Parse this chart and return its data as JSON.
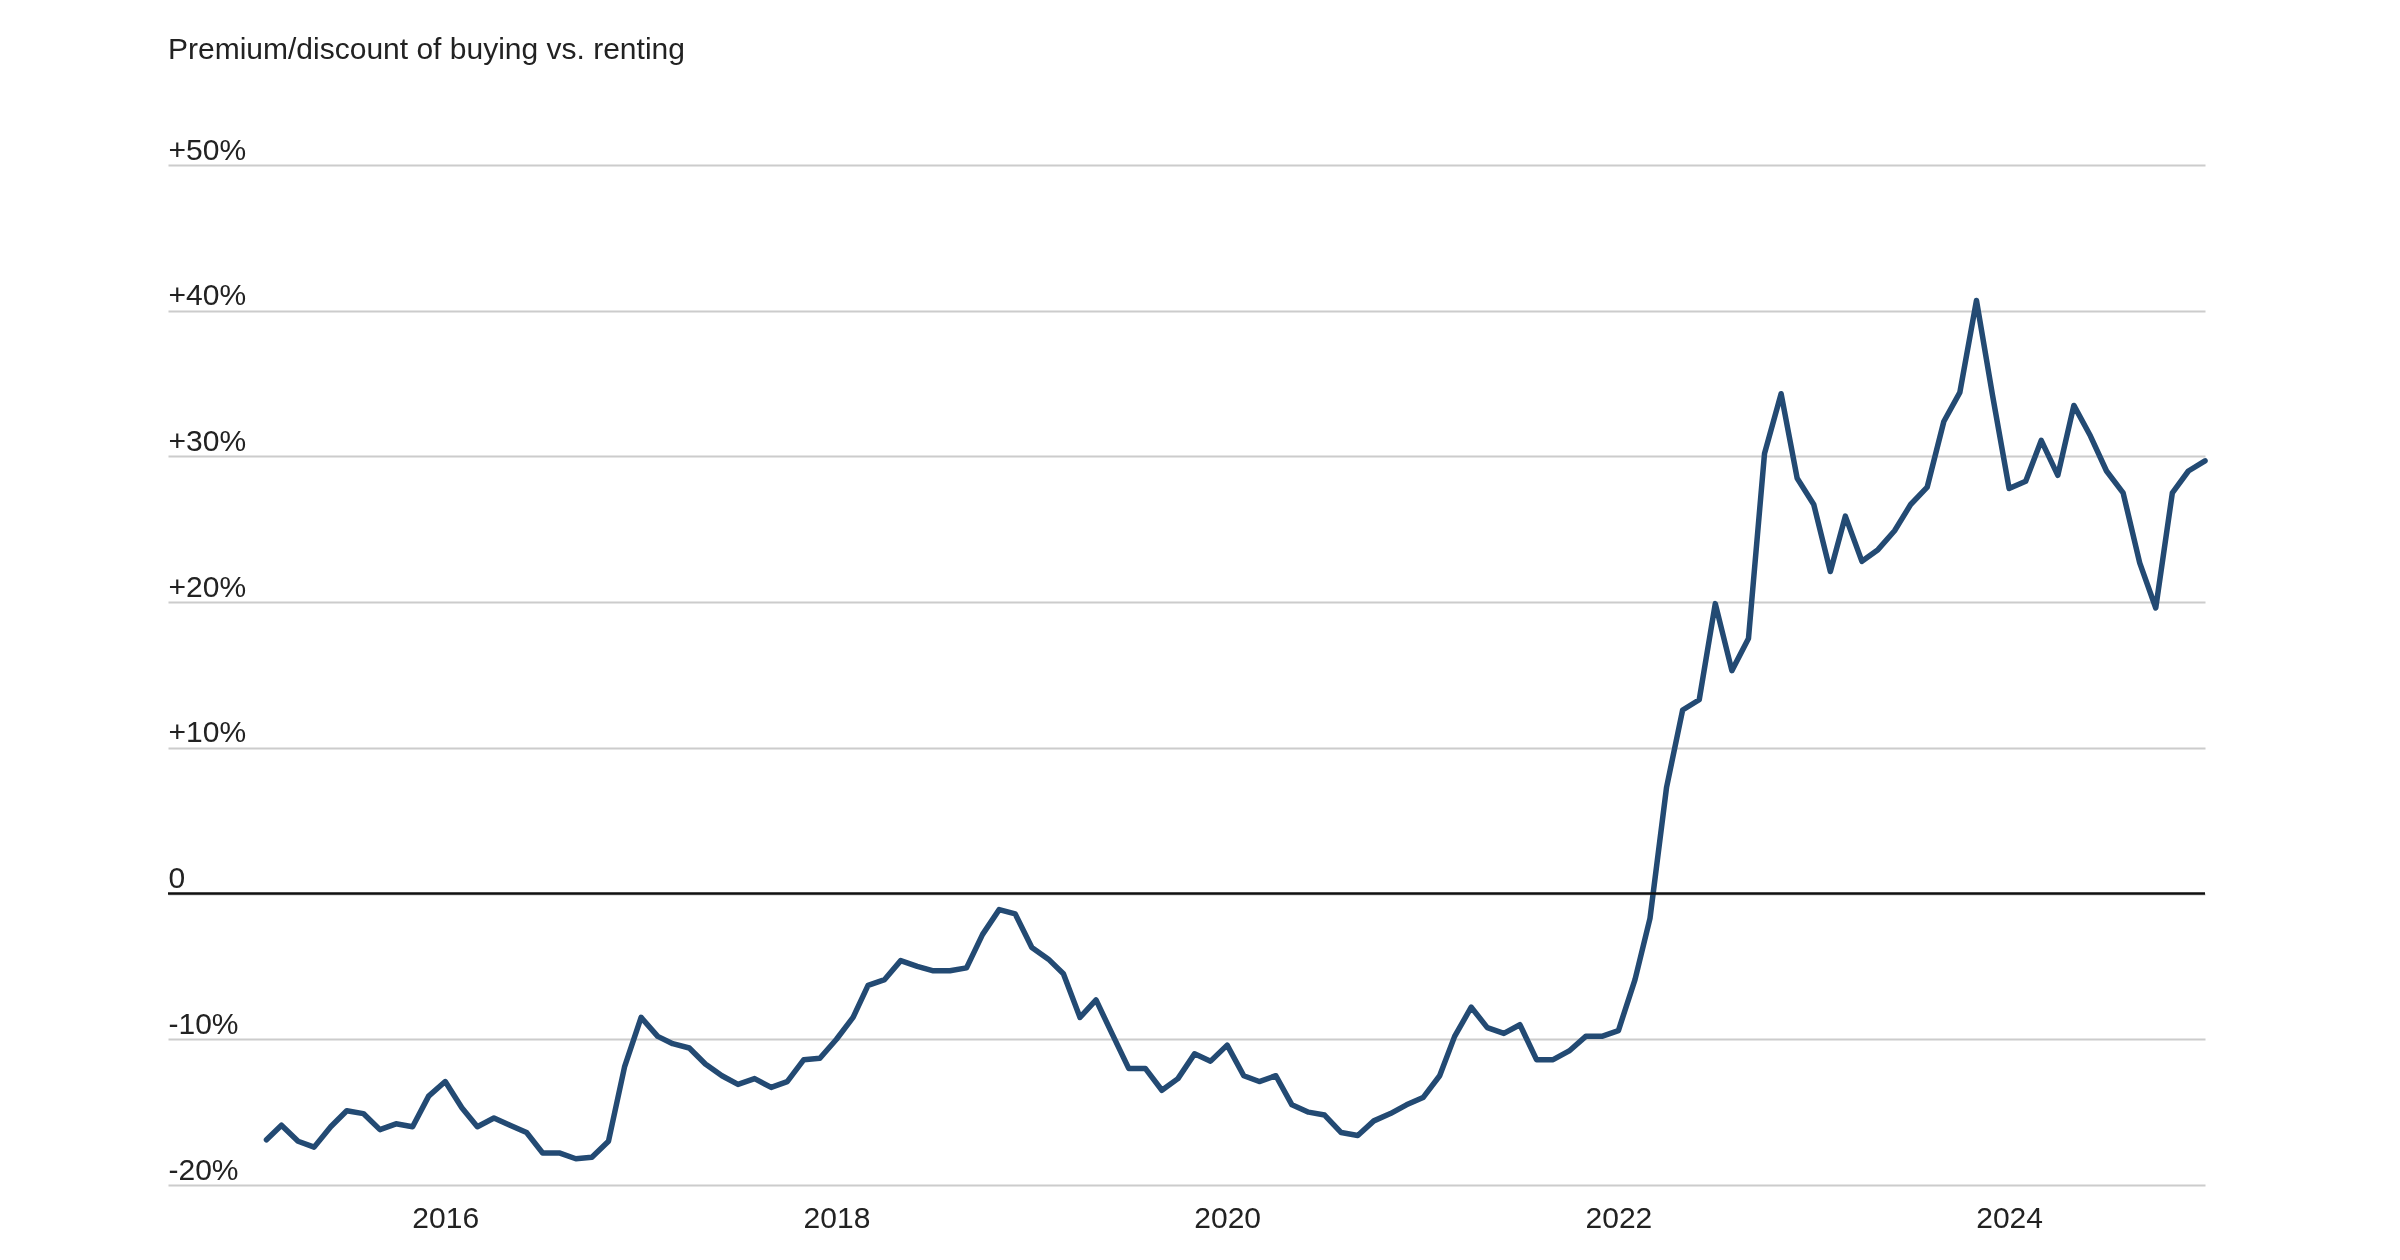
{
  "chart_data": {
    "type": "line",
    "title": "Premium/discount of buying vs. renting",
    "x": [
      "2015-02",
      "2015-03",
      "2015-04",
      "2015-05",
      "2015-06",
      "2015-07",
      "2015-08",
      "2015-09",
      "2015-10",
      "2015-11",
      "2015-12",
      "2016-01",
      "2016-02",
      "2016-03",
      "2016-04",
      "2016-05",
      "2016-06",
      "2016-07",
      "2016-08",
      "2016-09",
      "2016-10",
      "2016-11",
      "2016-12",
      "2017-01",
      "2017-02",
      "2017-03",
      "2017-04",
      "2017-05",
      "2017-06",
      "2017-07",
      "2017-08",
      "2017-09",
      "2017-10",
      "2017-11",
      "2017-12",
      "2018-01",
      "2018-02",
      "2018-03",
      "2018-04",
      "2018-05",
      "2018-06",
      "2018-07",
      "2018-08",
      "2018-09",
      "2018-10",
      "2018-11",
      "2018-12",
      "2019-01",
      "2019-02",
      "2019-03",
      "2019-04",
      "2019-05",
      "2019-06",
      "2019-07",
      "2019-08",
      "2019-09",
      "2019-10",
      "2019-11",
      "2019-12",
      "2020-01",
      "2020-02",
      "2020-03",
      "2020-04",
      "2020-05",
      "2020-06",
      "2020-07",
      "2020-08",
      "2020-09",
      "2020-10",
      "2020-11",
      "2020-12",
      "2021-01",
      "2021-02",
      "2021-03",
      "2021-04",
      "2021-05",
      "2021-06",
      "2021-07",
      "2021-08",
      "2021-09",
      "2021-10",
      "2021-11",
      "2021-12",
      "2022-01",
      "2022-02",
      "2022-03",
      "2022-04",
      "2022-05",
      "2022-06",
      "2022-07",
      "2022-08",
      "2022-09",
      "2022-10",
      "2022-11",
      "2022-12",
      "2023-01",
      "2023-02",
      "2023-03",
      "2023-04",
      "2023-05",
      "2023-06",
      "2023-07",
      "2023-08",
      "2023-09",
      "2023-10",
      "2023-11",
      "2023-12",
      "2024-01",
      "2024-02",
      "2024-03",
      "2024-04",
      "2024-05",
      "2024-06",
      "2024-07",
      "2024-08",
      "2024-09",
      "2024-10",
      "2024-11",
      "2024-12",
      "2025-01"
    ],
    "series": [
      {
        "color": "#234a73",
        "values": [
          -16.9,
          -15.9,
          -17.0,
          -17.4,
          -16.0,
          -14.9,
          -15.1,
          -16.2,
          -15.8,
          -16.0,
          -13.9,
          -12.9,
          -14.7,
          -16.0,
          -15.4,
          -15.9,
          -16.4,
          -17.8,
          -17.8,
          -18.2,
          -18.1,
          -17.0,
          -11.9,
          -8.5,
          -9.8,
          -10.3,
          -10.6,
          -11.7,
          -12.5,
          -13.1,
          -12.7,
          -13.3,
          -12.9,
          -11.4,
          -11.3,
          -10.0,
          -8.5,
          -6.3,
          -5.9,
          -4.6,
          -5.0,
          -5.3,
          -5.3,
          -5.1,
          -2.8,
          -1.1,
          -1.4,
          -3.7,
          -4.5,
          -5.5,
          -8.5,
          -7.3,
          -9.7,
          -12.0,
          -12.0,
          -13.5,
          -12.7,
          -11.0,
          -11.5,
          -10.4,
          -12.5,
          -12.9,
          -12.5,
          -14.5,
          -15.0,
          -15.2,
          -16.4,
          -16.6,
          -15.6,
          -15.1,
          -14.5,
          -14.0,
          -12.5,
          -9.8,
          -7.8,
          -9.2,
          -9.6,
          -9.0,
          -11.4,
          -11.4,
          -10.8,
          -9.8,
          -9.8,
          -9.4,
          -5.9,
          -1.7,
          7.3,
          12.6,
          13.3,
          19.9,
          15.3,
          17.5,
          30.2,
          34.3,
          28.5,
          26.7,
          22.1,
          25.9,
          22.8,
          23.6,
          24.9,
          26.7,
          27.9,
          32.4,
          34.4,
          40.7,
          34.2,
          27.8,
          28.3,
          31.1,
          28.7,
          33.5,
          31.4,
          29.0,
          27.5,
          22.7,
          19.6,
          27.5,
          29.0,
          29.7
        ]
      }
    ],
    "xlim": [
      "2014-08",
      "2025-01"
    ],
    "xticks": [
      {
        "value": "2016",
        "label": "2016"
      },
      {
        "value": "2018",
        "label": "2018"
      },
      {
        "value": "2020",
        "label": "2020"
      },
      {
        "value": "2022",
        "label": "2022"
      },
      {
        "value": "2024",
        "label": "2024"
      }
    ],
    "ylim": [
      -20,
      50
    ],
    "yticks": [
      {
        "value": -20,
        "label": "-20%"
      },
      {
        "value": -10,
        "label": "-10%"
      },
      {
        "value": 0,
        "label": "0"
      },
      {
        "value": 10,
        "label": "+10%"
      },
      {
        "value": 20,
        "label": "+20%"
      },
      {
        "value": 30,
        "label": "+30%"
      },
      {
        "value": 40,
        "label": "+40%"
      },
      {
        "value": 50,
        "label": "+50%"
      }
    ],
    "ref_lines": [
      {
        "axis": "y",
        "value": 0,
        "color": "#111111"
      }
    ],
    "grid": "y",
    "marker": "none",
    "line_style": "solid"
  }
}
